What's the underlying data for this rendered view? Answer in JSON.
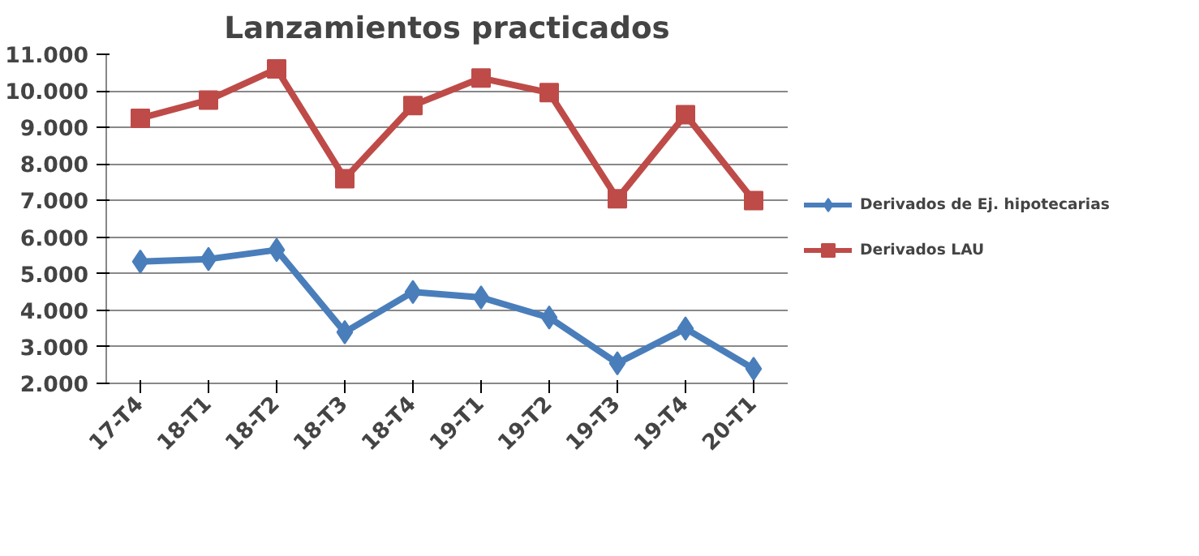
{
  "chart_data": {
    "type": "line",
    "title": "Lanzamientos practicados",
    "categories": [
      "17-T4",
      "18-T1",
      "18-T2",
      "18-T3",
      "18-T4",
      "19-T1",
      "19-T2",
      "19-T3",
      "19-T4",
      "20-T1"
    ],
    "series": [
      {
        "name": "Derivados de Ej. hipotecarias",
        "color": "#4a7ebb",
        "marker": "diamond",
        "values": [
          5330,
          5400,
          5650,
          3400,
          4500,
          4350,
          3800,
          2550,
          3500,
          2400
        ]
      },
      {
        "name": "Derivados LAU",
        "color": "#be4b48",
        "marker": "square",
        "values": [
          9250,
          9750,
          10600,
          7600,
          9600,
          10350,
          9950,
          7050,
          9350,
          7000
        ]
      }
    ],
    "ylim": [
      2000,
      11000
    ],
    "yticks": [
      {
        "value": 2000,
        "label": "2.000"
      },
      {
        "value": 3000,
        "label": "3.000"
      },
      {
        "value": 4000,
        "label": "4.000"
      },
      {
        "value": 5000,
        "label": "5.000"
      },
      {
        "value": 6000,
        "label": "6.000"
      },
      {
        "value": 7000,
        "label": "7.000"
      },
      {
        "value": 8000,
        "label": "8.000"
      },
      {
        "value": 9000,
        "label": "9.000"
      },
      {
        "value": 10000,
        "label": "10.000"
      },
      {
        "value": 11000,
        "label": "11.000"
      }
    ],
    "grid": "y",
    "legend": "right",
    "line_style": "solid"
  }
}
